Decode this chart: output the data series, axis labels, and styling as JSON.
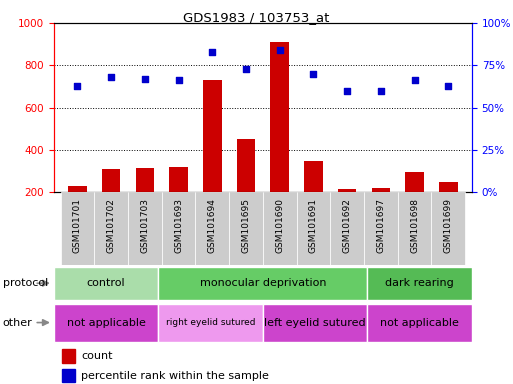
{
  "title": "GDS1983 / 103753_at",
  "samples": [
    "GSM101701",
    "GSM101702",
    "GSM101703",
    "GSM101693",
    "GSM101694",
    "GSM101695",
    "GSM101690",
    "GSM101691",
    "GSM101692",
    "GSM101697",
    "GSM101698",
    "GSM101699"
  ],
  "counts": [
    230,
    310,
    315,
    320,
    730,
    450,
    910,
    345,
    215,
    220,
    295,
    248
  ],
  "percentile": [
    63,
    68,
    67,
    66,
    83,
    73,
    84,
    70,
    60,
    60,
    66,
    63
  ],
  "ylim_left": [
    200,
    1000
  ],
  "ylim_right": [
    0,
    100
  ],
  "yticks_left": [
    200,
    400,
    600,
    800,
    1000
  ],
  "yticks_right": [
    0,
    25,
    50,
    75,
    100
  ],
  "bar_color": "#cc0000",
  "dot_color": "#0000cc",
  "protocol_groups": [
    {
      "label": "control",
      "start": 0,
      "end": 3,
      "color": "#aaddaa"
    },
    {
      "label": "monocular deprivation",
      "start": 3,
      "end": 9,
      "color": "#66cc66"
    },
    {
      "label": "dark rearing",
      "start": 9,
      "end": 12,
      "color": "#55bb55"
    }
  ],
  "other_groups": [
    {
      "label": "not applicable",
      "start": 0,
      "end": 3,
      "color": "#cc44cc"
    },
    {
      "label": "right eyelid sutured",
      "start": 3,
      "end": 6,
      "color": "#ee99ee"
    },
    {
      "label": "left eyelid sutured",
      "start": 6,
      "end": 9,
      "color": "#cc44cc"
    },
    {
      "label": "not applicable",
      "start": 9,
      "end": 12,
      "color": "#cc44cc"
    }
  ],
  "protocol_label": "protocol",
  "other_label": "other",
  "legend_count_label": "count",
  "legend_pct_label": "percentile rank within the sample",
  "bar_width": 0.55,
  "label_bg": "#cccccc"
}
